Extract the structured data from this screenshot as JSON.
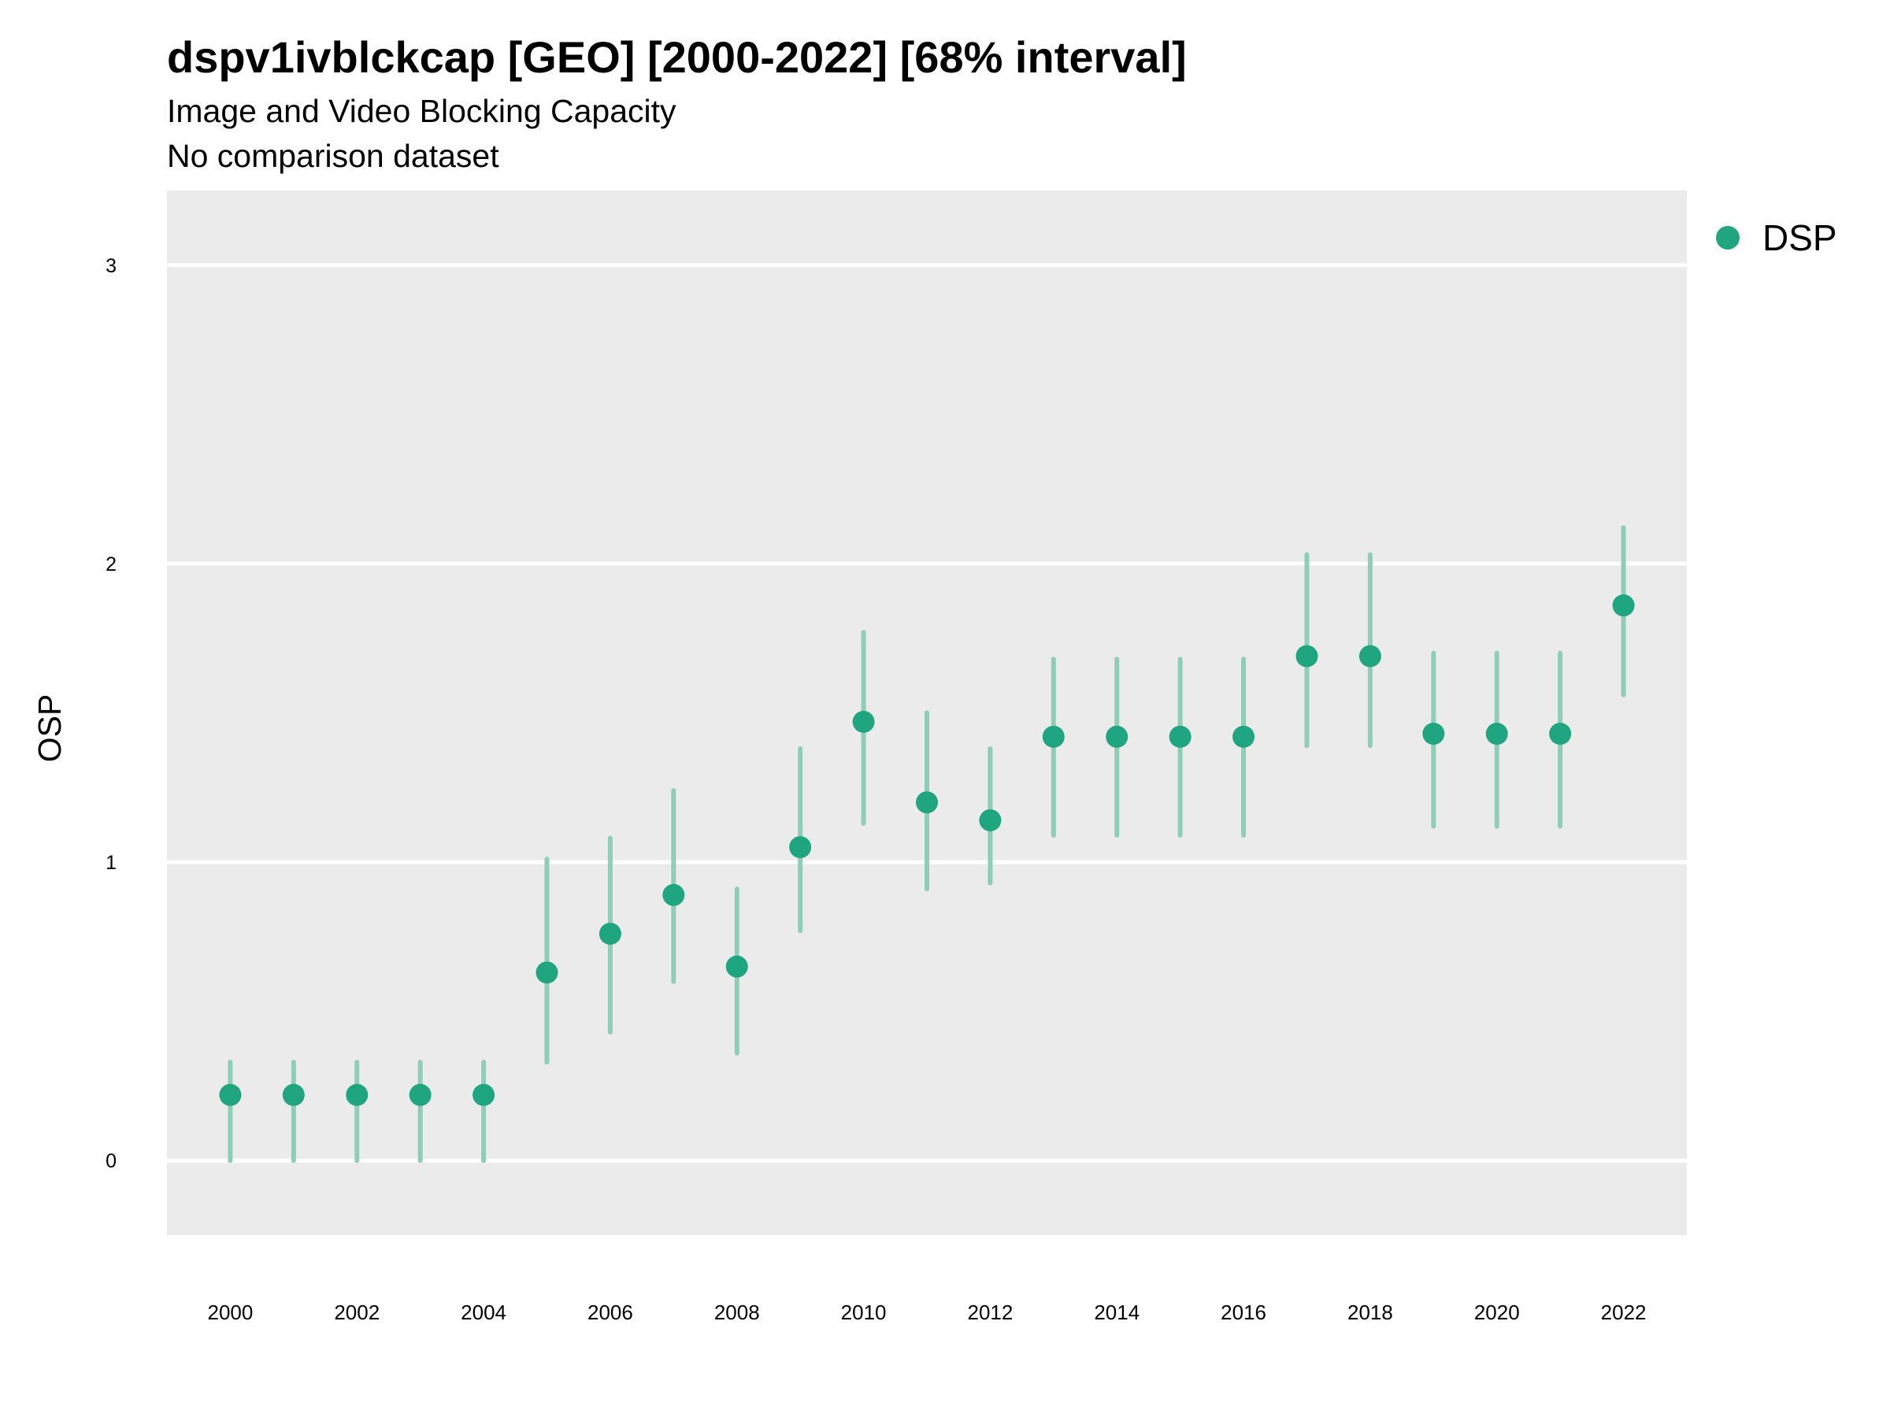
{
  "chart_data": {
    "type": "scatter",
    "title": "dspv1ivblckcap [GEO] [2000-2022] [68% interval]",
    "subtitle": "Image and Video Blocking Capacity",
    "caption": "No comparison dataset",
    "xlabel": "",
    "ylabel": "OSP",
    "xlim": [
      1999,
      2023
    ],
    "ylim": [
      -0.25,
      3.25
    ],
    "x_ticks": [
      "2000",
      "2002",
      "2004",
      "2006",
      "2008",
      "2010",
      "2012",
      "2014",
      "2016",
      "2018",
      "2020",
      "2022"
    ],
    "y_ticks": [
      "0",
      "1",
      "2",
      "3"
    ],
    "grid": true,
    "legend": {
      "position": "right",
      "entries": [
        "DSP"
      ]
    },
    "colors": {
      "point": "#1fa57f",
      "interval": "#8ecdb7",
      "panel": "#ebebeb",
      "gridline": "#ffffff"
    },
    "series": [
      {
        "name": "DSP",
        "x": [
          2000,
          2001,
          2002,
          2003,
          2004,
          2005,
          2006,
          2007,
          2008,
          2009,
          2010,
          2011,
          2012,
          2013,
          2014,
          2015,
          2016,
          2017,
          2018,
          2019,
          2020,
          2021,
          2022
        ],
        "y": [
          0.22,
          0.22,
          0.22,
          0.22,
          0.22,
          0.63,
          0.76,
          0.89,
          0.65,
          1.05,
          1.47,
          1.2,
          1.14,
          1.42,
          1.42,
          1.42,
          1.42,
          1.69,
          1.69,
          1.43,
          1.43,
          1.43,
          1.86
        ],
        "lower": [
          0.0,
          0.0,
          0.0,
          0.0,
          0.0,
          0.33,
          0.43,
          0.6,
          0.36,
          0.77,
          1.13,
          0.91,
          0.93,
          1.09,
          1.09,
          1.09,
          1.09,
          1.39,
          1.39,
          1.12,
          1.12,
          1.12,
          1.56
        ],
        "upper": [
          0.33,
          0.33,
          0.33,
          0.33,
          0.33,
          1.01,
          1.08,
          1.24,
          0.91,
          1.38,
          1.77,
          1.5,
          1.38,
          1.68,
          1.68,
          1.68,
          1.68,
          2.03,
          2.03,
          1.7,
          1.7,
          1.7,
          2.12
        ]
      }
    ]
  }
}
